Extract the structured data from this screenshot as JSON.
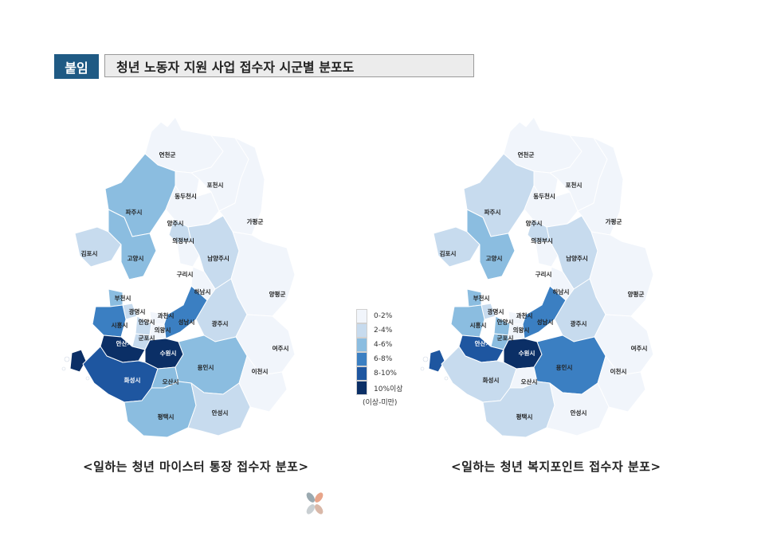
{
  "header": {
    "badge": "붙임",
    "title": "청년 노동자 지원 사업 접수자 시군별 분포도"
  },
  "legend": {
    "items": [
      {
        "label": "0-2%",
        "color": "#f1f5fb"
      },
      {
        "label": "2-4%",
        "color": "#c7dbee"
      },
      {
        "label": "4-6%",
        "color": "#8bbde0"
      },
      {
        "label": "6-8%",
        "color": "#3b7fc2"
      },
      {
        "label": "8-10%",
        "color": "#1e56a0"
      },
      {
        "label": "10%이상",
        "color": "#0b2f66"
      }
    ],
    "unit": "(이상-미만)"
  },
  "maps": [
    {
      "caption": "<일하는 청년 마이스터 통장 접수자 분포>",
      "regions": {
        "연천군": "#f1f5fb",
        "포천시": "#f1f5fb",
        "동두천시": "#f1f5fb",
        "파주시": "#8bbde0",
        "양주시": "#f1f5fb",
        "가평군": "#f1f5fb",
        "의정부시": "#c7dbee",
        "김포시": "#c7dbee",
        "고양시": "#8bbde0",
        "남양주시": "#c7dbee",
        "구리시": "#f1f5fb",
        "양평군": "#f1f5fb",
        "하남시": "#f1f5fb",
        "부천시": "#8bbde0",
        "광명시": "#c7dbee",
        "과천시": "#f1f5fb",
        "시흥시": "#3b7fc2",
        "안양시": "#c7dbee",
        "의왕시": "#f1f5fb",
        "성남시": "#3b7fc2",
        "광주시": "#c7dbee",
        "군포시": "#c7dbee",
        "안산시": "#0b2f66",
        "수원시": "#0b2f66",
        "여주시": "#f1f5fb",
        "화성시": "#1e56a0",
        "오산시": "#8bbde0",
        "용인시": "#8bbde0",
        "이천시": "#f1f5fb",
        "평택시": "#8bbde0",
        "안성시": "#c7dbee"
      }
    },
    {
      "caption": "<일하는 청년 복지포인트 접수자 분포>",
      "regions": {
        "연천군": "#f1f5fb",
        "포천시": "#f1f5fb",
        "동두천시": "#f1f5fb",
        "파주시": "#c7dbee",
        "양주시": "#f1f5fb",
        "가평군": "#f1f5fb",
        "의정부시": "#c7dbee",
        "김포시": "#c7dbee",
        "고양시": "#8bbde0",
        "남양주시": "#c7dbee",
        "구리시": "#f1f5fb",
        "양평군": "#f1f5fb",
        "하남시": "#f1f5fb",
        "부천시": "#8bbde0",
        "광명시": "#c7dbee",
        "과천시": "#f1f5fb",
        "시흥시": "#8bbde0",
        "안양시": "#8bbde0",
        "의왕시": "#f1f5fb",
        "성남시": "#3b7fc2",
        "광주시": "#c7dbee",
        "군포시": "#8bbde0",
        "안산시": "#1e56a0",
        "수원시": "#0b2f66",
        "여주시": "#f1f5fb",
        "화성시": "#c7dbee",
        "오산시": "#f1f5fb",
        "용인시": "#3b7fc2",
        "이천시": "#f1f5fb",
        "평택시": "#c7dbee",
        "안성시": "#f1f5fb"
      }
    }
  ]
}
